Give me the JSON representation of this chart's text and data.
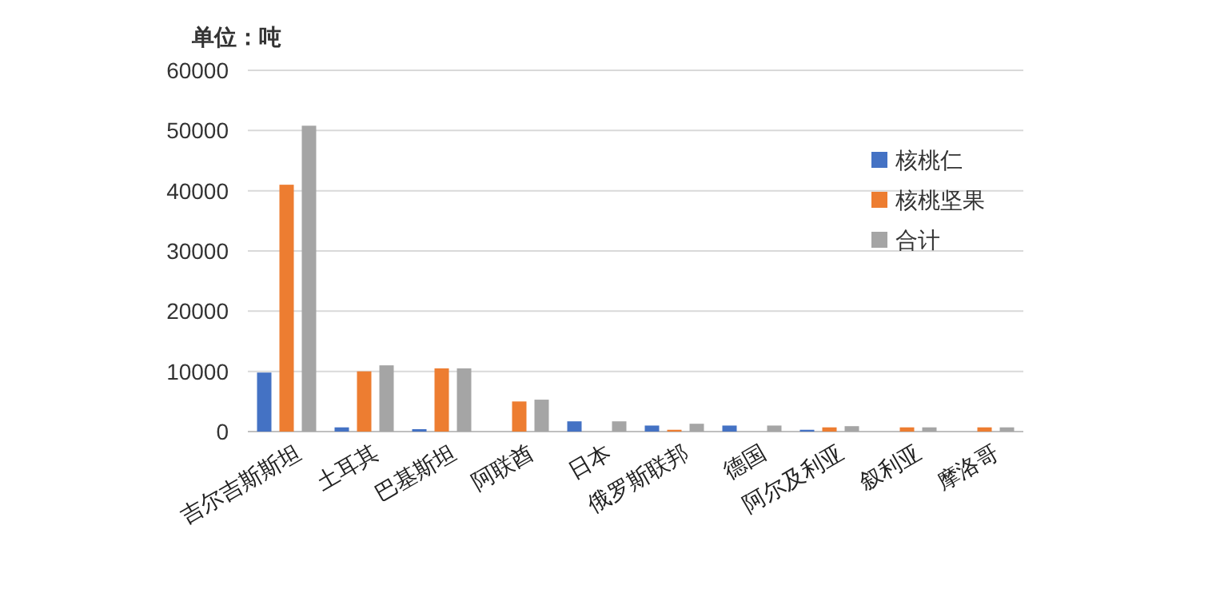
{
  "chart_data": {
    "type": "bar",
    "ylabel": "单位：吨",
    "categories": [
      "吉尔吉斯斯坦",
      "土耳其",
      "巴基斯坦",
      "阿联酋",
      "日本",
      "俄罗斯联邦",
      "德国",
      "阿尔及利亚",
      "叙利亚",
      "摩洛哥"
    ],
    "series": [
      {
        "name": "核桃仁",
        "color": "#4472c4",
        "values": [
          9800,
          700,
          400,
          null,
          1700,
          1000,
          1000,
          300,
          null,
          null
        ]
      },
      {
        "name": "核桃坚果",
        "color": "#ed7d31",
        "values": [
          41000,
          10000,
          10500,
          5000,
          null,
          300,
          null,
          700,
          700,
          700
        ]
      },
      {
        "name": "合计",
        "color": "#a5a5a5",
        "values": [
          50800,
          11000,
          10500,
          5300,
          1700,
          1300,
          1000,
          900,
          700,
          700
        ]
      }
    ],
    "ylim": [
      0,
      60000
    ],
    "yticks": [
      0,
      10000,
      20000,
      30000,
      40000,
      50000,
      60000
    ],
    "grid": "y",
    "legend": "right"
  }
}
